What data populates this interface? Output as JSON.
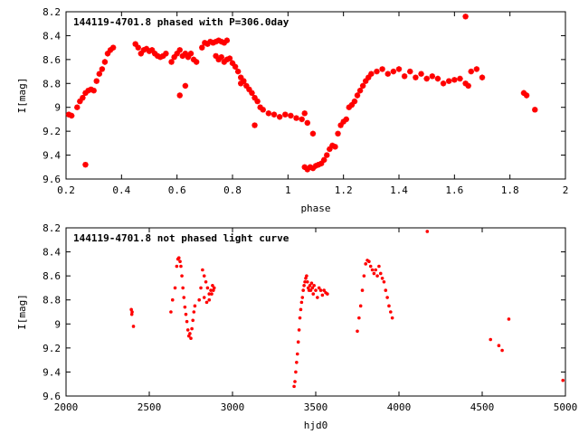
{
  "chart_data": [
    {
      "type": "scatter",
      "title": "144119-4701.8 phased with P=306.0day",
      "xlabel": "phase",
      "ylabel": "I[mag]",
      "xlim": [
        0.2,
        2.0
      ],
      "ylim": [
        8.2,
        9.6
      ],
      "y_inverted": true,
      "x_ticks": [
        "0.2",
        "0.4",
        "0.6",
        "0.8",
        "1",
        "1.2",
        "1.4",
        "1.6",
        "1.8",
        "2"
      ],
      "y_ticks": [
        "8.2",
        "8.4",
        "8.6",
        "8.8",
        "9",
        "9.2",
        "9.4",
        "9.6"
      ],
      "marker": "star",
      "color": "#ff0000",
      "series": [
        {
          "x": [
            0.21,
            0.22,
            0.24,
            0.25,
            0.26,
            0.27,
            0.28,
            0.29,
            0.3,
            0.31,
            0.32,
            0.33,
            0.34,
            0.35,
            0.36,
            0.37,
            0.27,
            0.45,
            0.46,
            0.47,
            0.48,
            0.49,
            0.5,
            0.51,
            0.52,
            0.53,
            0.54,
            0.55,
            0.56,
            0.58,
            0.59,
            0.6,
            0.61,
            0.62,
            0.63,
            0.64,
            0.65,
            0.66,
            0.67,
            0.61,
            0.63,
            0.69,
            0.7,
            0.71,
            0.72,
            0.73,
            0.74,
            0.75,
            0.76,
            0.77,
            0.78,
            0.74,
            0.75,
            0.76,
            0.77,
            0.78,
            0.79,
            0.8,
            0.81,
            0.82,
            0.83,
            0.84,
            0.83,
            0.84,
            0.85,
            0.86,
            0.87,
            0.88,
            0.89,
            0.9,
            0.88,
            0.91,
            0.93,
            0.95,
            0.97,
            0.99,
            1.01,
            1.03,
            1.05,
            1.06,
            1.07,
            1.09,
            1.06,
            1.07,
            1.08,
            1.09,
            1.1,
            1.11,
            1.12,
            1.13,
            1.14,
            1.15,
            1.16,
            1.17,
            1.18,
            1.19,
            1.2,
            1.21,
            1.22,
            1.23,
            1.24,
            1.25,
            1.26,
            1.27,
            1.28,
            1.29,
            1.3,
            1.32,
            1.34,
            1.36,
            1.38,
            1.4,
            1.42,
            1.44,
            1.46,
            1.48,
            1.5,
            1.52,
            1.54,
            1.56,
            1.58,
            1.6,
            1.62,
            1.64,
            1.65,
            1.66,
            1.68,
            1.7,
            1.64,
            1.85,
            1.86,
            1.89
          ],
          "y": [
            9.06,
            9.07,
            9.0,
            8.95,
            8.92,
            8.88,
            8.86,
            8.85,
            8.86,
            8.78,
            8.72,
            8.68,
            8.62,
            8.55,
            8.52,
            8.5,
            9.48,
            8.47,
            8.5,
            8.55,
            8.52,
            8.51,
            8.53,
            8.52,
            8.55,
            8.57,
            8.58,
            8.57,
            8.55,
            8.62,
            8.58,
            8.55,
            8.52,
            8.57,
            8.55,
            8.58,
            8.55,
            8.6,
            8.62,
            8.9,
            8.82,
            8.5,
            8.46,
            8.47,
            8.45,
            8.46,
            8.45,
            8.44,
            8.45,
            8.46,
            8.44,
            8.57,
            8.6,
            8.58,
            8.62,
            8.6,
            8.59,
            8.63,
            8.66,
            8.7,
            8.75,
            8.78,
            8.8,
            8.78,
            8.82,
            8.85,
            8.88,
            8.92,
            8.95,
            9.0,
            9.15,
            9.02,
            9.05,
            9.06,
            9.08,
            9.06,
            9.07,
            9.09,
            9.1,
            9.05,
            9.13,
            9.22,
            9.5,
            9.52,
            9.5,
            9.51,
            9.49,
            9.48,
            9.47,
            9.44,
            9.4,
            9.35,
            9.32,
            9.33,
            9.22,
            9.15,
            9.12,
            9.1,
            9.0,
            8.98,
            8.95,
            8.9,
            8.86,
            8.82,
            8.78,
            8.75,
            8.72,
            8.7,
            8.68,
            8.72,
            8.7,
            8.68,
            8.74,
            8.7,
            8.75,
            8.72,
            8.76,
            8.74,
            8.76,
            8.8,
            8.78,
            8.77,
            8.76,
            8.8,
            8.82,
            8.7,
            8.68,
            8.75,
            8.24,
            8.88,
            8.9,
            9.02
          ]
        }
      ]
    },
    {
      "type": "scatter",
      "title": "144119-4701.8 not phased light curve",
      "xlabel": "hjd0",
      "ylabel": "I[mag]",
      "xlim": [
        2000,
        5000
      ],
      "ylim": [
        8.2,
        9.6
      ],
      "y_inverted": true,
      "x_ticks": [
        "2000",
        "2500",
        "3000",
        "3500",
        "4000",
        "4500",
        "5000"
      ],
      "y_ticks": [
        "8.2",
        "8.4",
        "8.6",
        "8.8",
        "9",
        "9.2",
        "9.4",
        "9.6"
      ],
      "marker": "dot",
      "color": "#ff0000",
      "series": [
        {
          "x": [
            2392,
            2395,
            2397,
            2405,
            2630,
            2640,
            2655,
            2665,
            2672,
            2678,
            2685,
            2690,
            2696,
            2702,
            2708,
            2714,
            2720,
            2726,
            2732,
            2738,
            2744,
            2750,
            2756,
            2762,
            2768,
            2774,
            2800,
            2810,
            2820,
            2830,
            2840,
            2850,
            2860,
            2870,
            2880,
            2890,
            2830,
            2845,
            2860,
            2875,
            2885,
            3370,
            3375,
            3380,
            3385,
            3390,
            3395,
            3400,
            3405,
            3410,
            3415,
            3420,
            3425,
            3430,
            3435,
            3440,
            3445,
            3450,
            3455,
            3460,
            3465,
            3470,
            3475,
            3480,
            3485,
            3490,
            3500,
            3510,
            3520,
            3530,
            3540,
            3550,
            3560,
            3570,
            3750,
            3760,
            3770,
            3780,
            3790,
            3800,
            3810,
            3820,
            3830,
            3840,
            3850,
            3860,
            3870,
            3880,
            3890,
            3900,
            3910,
            3920,
            3930,
            3940,
            3950,
            3960,
            4170,
            4550,
            4600,
            4620,
            4660,
            4985
          ],
          "y": [
            8.88,
            8.92,
            8.9,
            9.02,
            8.9,
            8.8,
            8.7,
            8.52,
            8.46,
            8.45,
            8.48,
            8.52,
            8.6,
            8.7,
            8.78,
            8.86,
            8.92,
            8.98,
            9.05,
            9.1,
            9.08,
            9.12,
            9.04,
            8.97,
            8.9,
            8.85,
            8.8,
            8.7,
            8.55,
            8.6,
            8.65,
            8.7,
            8.75,
            8.72,
            8.68,
            8.7,
            8.78,
            8.82,
            8.8,
            8.75,
            8.72,
            9.52,
            9.48,
            9.4,
            9.32,
            9.25,
            9.15,
            9.05,
            8.95,
            8.88,
            8.82,
            8.78,
            8.72,
            8.68,
            8.65,
            8.62,
            8.6,
            8.65,
            8.7,
            8.72,
            8.68,
            8.72,
            8.66,
            8.7,
            8.75,
            8.68,
            8.72,
            8.78,
            8.7,
            8.72,
            8.76,
            8.72,
            8.74,
            8.75,
            9.06,
            8.95,
            8.85,
            8.72,
            8.6,
            8.5,
            8.47,
            8.48,
            8.52,
            8.55,
            8.58,
            8.55,
            8.6,
            8.52,
            8.58,
            8.62,
            8.65,
            8.72,
            8.78,
            8.85,
            8.9,
            8.95,
            8.23,
            9.13,
            9.18,
            9.22,
            8.96,
            9.47
          ]
        }
      ]
    }
  ]
}
